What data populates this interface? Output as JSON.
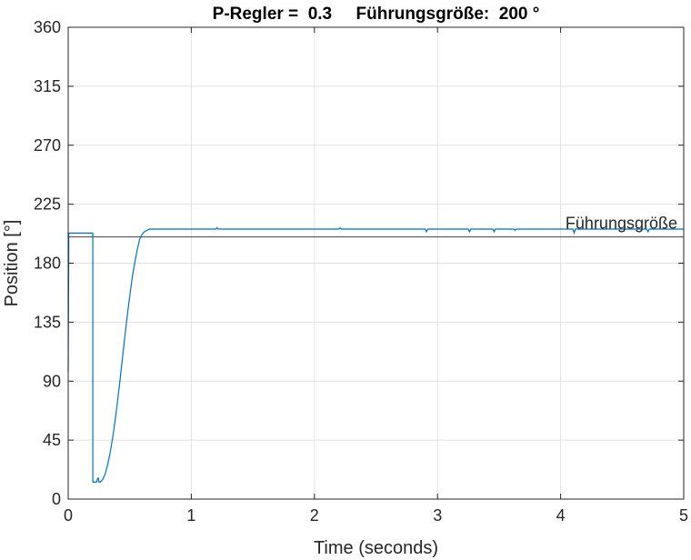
{
  "chart_data": {
    "type": "line",
    "title": "P-Regler =  0.3     Führungsgröße:  200 °",
    "xlabel": "Time (seconds)",
    "ylabel": "Position [°]",
    "xlim": [
      0,
      5
    ],
    "ylim": [
      0,
      360
    ],
    "x_ticks": [
      "0",
      "1",
      "2",
      "3",
      "4",
      "5"
    ],
    "y_ticks": [
      "0",
      "45",
      "90",
      "135",
      "180",
      "225",
      "270",
      "315",
      "360"
    ],
    "grid": true,
    "colors": {
      "series": "#0072bd",
      "reference": "#404040",
      "grid": "#e1e1e1",
      "axes": "#262626"
    },
    "reference": {
      "label": "Führungsgröße",
      "y": 200
    },
    "series": [
      {
        "x": [
          0,
          0.005,
          0.01,
          0.2,
          0.2,
          0.21,
          0.22,
          0.23,
          0.24,
          0.245,
          0.25,
          0.26,
          0.28,
          0.3,
          0.32,
          0.34,
          0.36,
          0.38,
          0.4,
          0.42,
          0.44,
          0.46,
          0.48,
          0.5,
          0.52,
          0.54,
          0.56,
          0.58,
          0.6,
          0.62,
          0.64,
          0.66,
          0.68,
          0.7,
          0.72,
          1.2,
          1.21,
          1.22,
          2.2,
          2.21,
          2.22,
          2.9,
          2.91,
          2.92,
          3.25,
          3.26,
          3.27,
          3.45,
          3.46,
          3.47,
          3.62,
          3.63,
          3.64,
          4.1,
          4.11,
          4.12,
          4.7,
          4.71,
          4.72,
          5.0
        ],
        "y": [
          97,
          203,
          203,
          203,
          13,
          13,
          13,
          13,
          16,
          16,
          13,
          13,
          15,
          19,
          26,
          35,
          46,
          59,
          74,
          90,
          107,
          124,
          140,
          155,
          169,
          180,
          190,
          198,
          202,
          204,
          205,
          206,
          206,
          206,
          206,
          206,
          207,
          206,
          206,
          207,
          206,
          206,
          204,
          206,
          206,
          204,
          206,
          206,
          204,
          206,
          206,
          205,
          206,
          206,
          203,
          206,
          206,
          204,
          206,
          206
        ]
      }
    ]
  }
}
